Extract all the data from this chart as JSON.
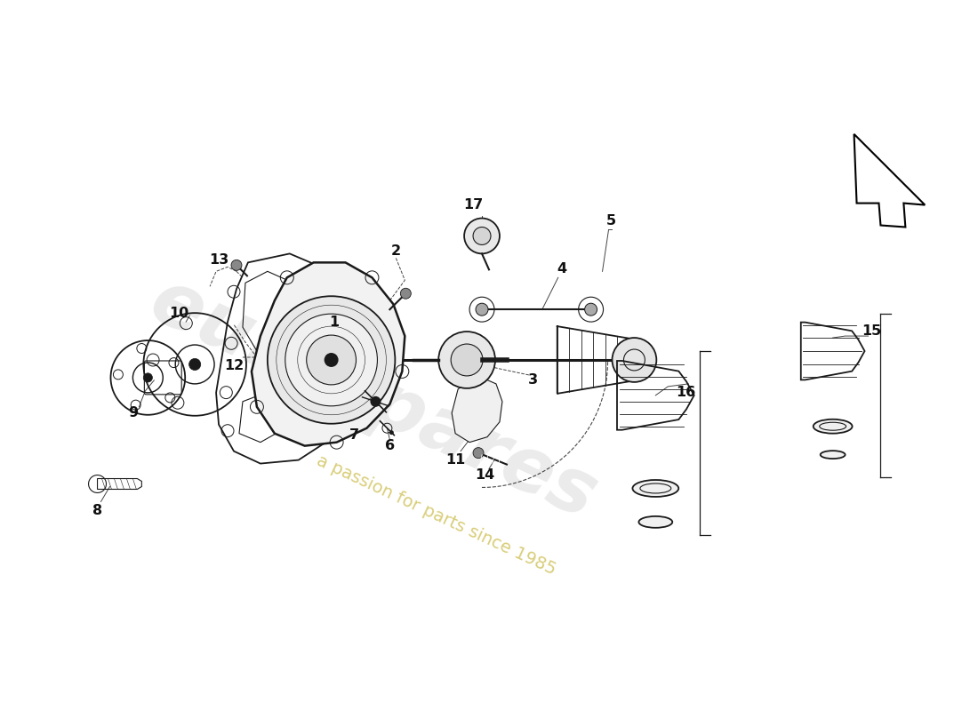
{
  "bg_color": "#ffffff",
  "line_color": "#1a1a1a",
  "text_color": "#111111",
  "watermark_color_main": "#d8d8d8",
  "watermark_color_sub": "#c8b840",
  "fig_width": 11.0,
  "fig_height": 8.0,
  "dpi": 100,
  "xlim": [
    0,
    11
  ],
  "ylim": [
    0,
    8
  ]
}
